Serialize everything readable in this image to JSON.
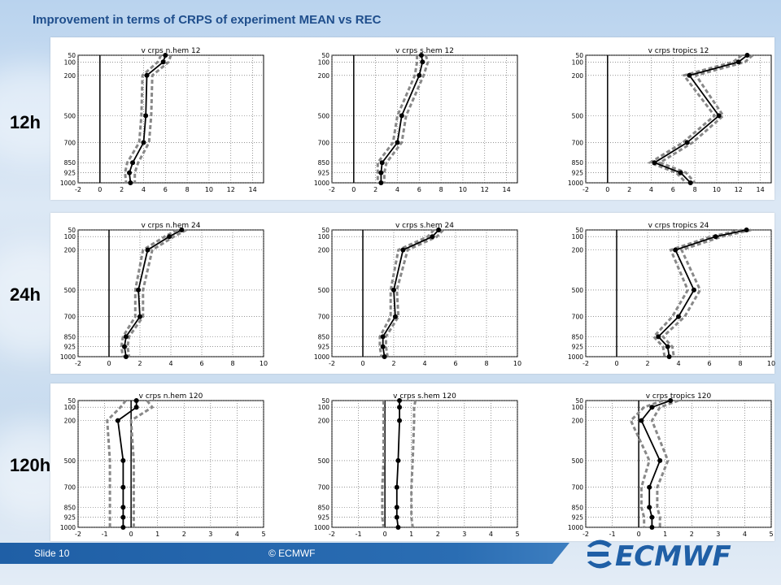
{
  "title": "Improvement in terms of CRPS of experiment MEAN vs REC",
  "row_labels": [
    "12h",
    "24h",
    "120h"
  ],
  "footer": {
    "slide": "Slide 10",
    "copyright": "© ECMWF",
    "logo_text": "ECMWF"
  },
  "colors": {
    "title": "#1f4e8c",
    "footer": "#1f5fa6",
    "mean_line": "#000000",
    "ci_line": "#888888"
  },
  "chart_data": [
    {
      "type": "line",
      "title": "v crps n.hem 12",
      "xlim": [
        -2,
        15
      ],
      "xticks": [
        -2,
        0,
        2,
        4,
        6,
        8,
        10,
        12,
        14
      ],
      "ylabels": [
        "50",
        "100",
        "200",
        "500",
        "700",
        "850",
        "925",
        "1000"
      ],
      "x": [
        6.0,
        5.8,
        4.3,
        4.2,
        4.0,
        3.0,
        2.7,
        2.8
      ],
      "lower": [
        5.6,
        5.3,
        3.9,
        3.8,
        3.6,
        2.5,
        2.3,
        2.4
      ],
      "upper": [
        6.5,
        6.3,
        4.8,
        4.7,
        4.5,
        3.5,
        3.2,
        3.2
      ]
    },
    {
      "type": "line",
      "title": "v crps s.hem 12",
      "xlim": [
        -2,
        15
      ],
      "xticks": [
        -2,
        0,
        2,
        4,
        6,
        8,
        10,
        12,
        14
      ],
      "ylabels": [
        "50",
        "100",
        "200",
        "500",
        "700",
        "850",
        "925",
        "1000"
      ],
      "x": [
        6.2,
        6.3,
        6.0,
        4.4,
        4.0,
        2.6,
        2.5,
        2.5
      ],
      "lower": [
        5.8,
        5.8,
        5.6,
        4.0,
        3.6,
        2.2,
        2.2,
        2.2
      ],
      "upper": [
        6.6,
        6.8,
        6.4,
        4.8,
        4.4,
        3.0,
        2.8,
        2.8
      ]
    },
    {
      "type": "line",
      "title": "v crps tropics 12",
      "xlim": [
        -2,
        15
      ],
      "xticks": [
        -2,
        0,
        2,
        4,
        6,
        8,
        10,
        12,
        14
      ],
      "ylabels": [
        "50",
        "100",
        "200",
        "500",
        "700",
        "850",
        "925",
        "1000"
      ],
      "x": [
        12.8,
        12.0,
        7.5,
        10.2,
        7.3,
        4.3,
        6.7,
        7.6
      ],
      "lower": [
        12.3,
        11.5,
        7.0,
        9.8,
        6.9,
        3.9,
        6.3,
        7.2
      ],
      "upper": [
        13.3,
        12.6,
        8.1,
        10.6,
        7.8,
        4.8,
        7.2,
        8.0
      ]
    },
    {
      "type": "line",
      "title": "v crps n.hem 24",
      "xlim": [
        -2,
        10
      ],
      "xticks": [
        -2,
        0,
        2,
        4,
        6,
        8,
        10
      ],
      "ylabels": [
        "50",
        "100",
        "200",
        "500",
        "700",
        "850",
        "925",
        "1000"
      ],
      "x": [
        4.7,
        3.9,
        2.5,
        1.9,
        2.0,
        1.1,
        1.0,
        1.1
      ],
      "lower": [
        4.4,
        3.6,
        2.2,
        1.7,
        1.7,
        0.9,
        0.8,
        0.9
      ],
      "upper": [
        5.0,
        4.2,
        2.8,
        2.2,
        2.2,
        1.3,
        1.2,
        1.3
      ]
    },
    {
      "type": "line",
      "title": "v crps s.hem 24",
      "xlim": [
        -2,
        10
      ],
      "xticks": [
        -2,
        0,
        2,
        4,
        6,
        8,
        10
      ],
      "ylabels": [
        "50",
        "100",
        "200",
        "500",
        "700",
        "850",
        "925",
        "1000"
      ],
      "x": [
        4.9,
        4.5,
        2.6,
        2.0,
        2.1,
        1.3,
        1.3,
        1.4
      ],
      "lower": [
        4.6,
        4.2,
        2.3,
        1.8,
        1.8,
        1.1,
        1.1,
        1.2
      ],
      "upper": [
        5.2,
        4.8,
        2.9,
        2.2,
        2.3,
        1.5,
        1.5,
        1.6
      ]
    },
    {
      "type": "line",
      "title": "v crps tropics 24",
      "xlim": [
        -2,
        10
      ],
      "xticks": [
        -2,
        0,
        2,
        4,
        6,
        8,
        10
      ],
      "ylabels": [
        "50",
        "100",
        "200",
        "500",
        "700",
        "850",
        "925",
        "1000"
      ],
      "x": [
        8.4,
        6.4,
        3.8,
        5.0,
        4.0,
        2.7,
        3.3,
        3.4
      ],
      "lower": [
        8.1,
        6.1,
        3.5,
        4.6,
        3.6,
        2.4,
        3.0,
        3.1
      ],
      "upper": [
        8.7,
        6.8,
        4.2,
        5.4,
        4.4,
        3.0,
        3.6,
        3.7
      ]
    },
    {
      "type": "line",
      "title": "v crps n.hem 120",
      "xlim": [
        -2,
        5
      ],
      "xticks": [
        -2,
        -1,
        0,
        1,
        2,
        3,
        4,
        5
      ],
      "ylabels": [
        "50",
        "100",
        "200",
        "500",
        "700",
        "850",
        "925",
        "1000"
      ],
      "x": [
        0.2,
        0.2,
        -0.5,
        -0.3,
        -0.3,
        -0.3,
        -0.3,
        -0.3
      ],
      "lower": [
        -0.2,
        -0.4,
        -0.9,
        -0.8,
        -0.8,
        -0.8,
        -0.8,
        -0.8
      ],
      "upper": [
        0.6,
        0.8,
        0.0,
        0.1,
        0.1,
        0.1,
        0.1,
        0.1
      ]
    },
    {
      "type": "line",
      "title": "v crps s.hem 120",
      "xlim": [
        -2,
        5
      ],
      "xticks": [
        -2,
        -1,
        0,
        1,
        2,
        3,
        4,
        5
      ],
      "ylabels": [
        "50",
        "100",
        "200",
        "500",
        "700",
        "850",
        "925",
        "1000"
      ],
      "x": [
        0.55,
        0.55,
        0.55,
        0.5,
        0.45,
        0.45,
        0.45,
        0.5
      ],
      "lower": [
        -0.05,
        -0.05,
        -0.05,
        -0.05,
        -0.1,
        -0.1,
        -0.1,
        -0.05
      ],
      "upper": [
        1.15,
        1.1,
        1.1,
        1.05,
        1.0,
        1.0,
        1.0,
        1.05
      ]
    },
    {
      "type": "line",
      "title": "v crps tropics 120",
      "xlim": [
        -2,
        5
      ],
      "xticks": [
        -2,
        -1,
        0,
        1,
        2,
        3,
        4,
        5
      ],
      "ylabels": [
        "50",
        "100",
        "200",
        "500",
        "700",
        "850",
        "925",
        "1000"
      ],
      "x": [
        1.2,
        0.5,
        0.1,
        0.8,
        0.4,
        0.4,
        0.5,
        0.5
      ],
      "lower": [
        0.9,
        0.2,
        -0.3,
        0.4,
        0.1,
        0.1,
        0.2,
        0.2
      ],
      "upper": [
        1.5,
        0.8,
        0.5,
        1.1,
        0.7,
        0.7,
        0.8,
        0.8
      ]
    }
  ]
}
